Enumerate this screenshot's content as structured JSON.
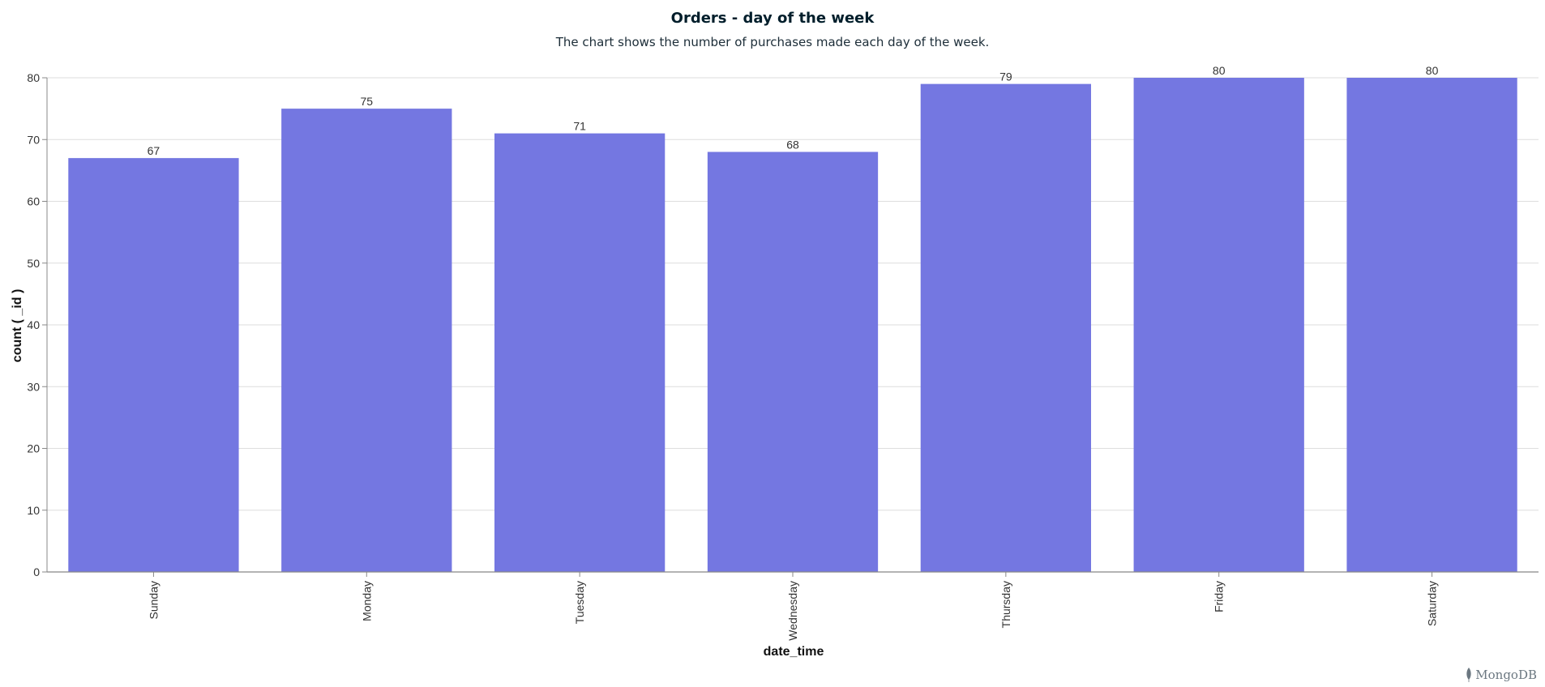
{
  "header": {
    "title": "Orders - day of the week",
    "subtitle": "The chart shows the number of purchases made each day of the week."
  },
  "brand": {
    "name": "MongoDB",
    "icon": "leaf-icon"
  },
  "colors": {
    "bar": "#7477e1",
    "grid": "#dedede",
    "axis": "#888888"
  },
  "chart_data": {
    "type": "bar",
    "title": "Orders - day of the week",
    "subtitle": "The chart shows the number of purchases made each day of the week.",
    "xlabel": "date_time",
    "ylabel": "count ( _id )",
    "categories": [
      "Sunday",
      "Monday",
      "Tuesday",
      "Wednesday",
      "Thursday",
      "Friday",
      "Saturday"
    ],
    "values": [
      67,
      75,
      71,
      68,
      79,
      80,
      80
    ],
    "ylim": [
      0,
      80
    ],
    "yticks": [
      0,
      10,
      20,
      30,
      40,
      50,
      60,
      70,
      80
    ],
    "data_labels": true,
    "grid": true,
    "legend": "none"
  }
}
